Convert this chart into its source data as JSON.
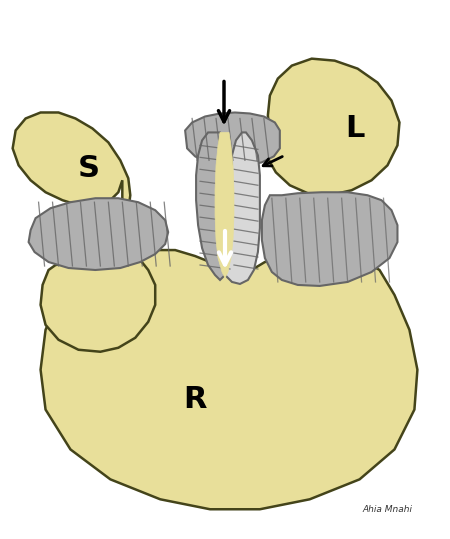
{
  "background_color": "#ffffff",
  "bone_color": "#e8df9a",
  "bone_edge_color": "#44441a",
  "bone_shadow": "#c8c078",
  "ligament_mid": "#b0b0b0",
  "ligament_dark": "#666666",
  "ligament_light": "#d8d8d8",
  "ligament_stripe": "#888888",
  "label_S": "S",
  "label_L": "L",
  "label_R": "R",
  "label_font_size": 22,
  "signature": "Ahia Mnahi",
  "fig_width": 4.5,
  "fig_height": 5.39,
  "dpi": 100
}
